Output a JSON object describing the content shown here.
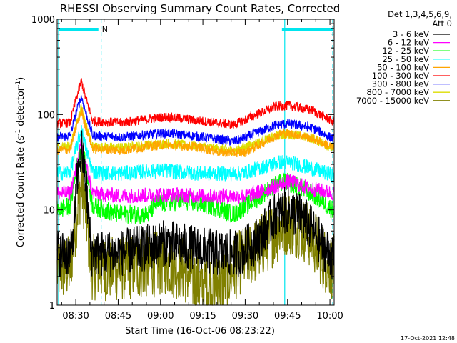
{
  "chart_data": {
    "type": "line",
    "title": "RHESSI Observing Summary Count Rates, Corrected",
    "xlabel": "Start Time (16-Oct-06 08:23:22)",
    "ylabel_parts": [
      "Corrected Count Rate (s",
      "-1",
      " detector",
      "-1",
      ")"
    ],
    "x_ticks": [
      "08:30",
      "08:45",
      "09:00",
      "09:15",
      "09:30",
      "09:45",
      "10:00"
    ],
    "x_tick_minutes": [
      30,
      45,
      60,
      75,
      90,
      105,
      120
    ],
    "xlim_minutes": [
      23.4,
      121.5
    ],
    "y_scale": "log",
    "ylim": [
      1,
      1000
    ],
    "y_ticks": [
      "1",
      "10",
      "100",
      "1000"
    ],
    "legend_header": [
      "Det 1,3,4,5,6,9,",
      "Att 0"
    ],
    "legend_position": "right",
    "flag_label": "N",
    "timestamp": "17-Oct-2021 12:48",
    "series": [
      {
        "name": "3 - 6 keV",
        "color": "#000000",
        "keypoints": [
          [
            23.4,
            3.5
          ],
          [
            28.5,
            3.5
          ],
          [
            30.5,
            20
          ],
          [
            32,
            45
          ],
          [
            33.5,
            20
          ],
          [
            35.5,
            3.5
          ],
          [
            45,
            3.5
          ],
          [
            55,
            4.0
          ],
          [
            62,
            4.5
          ],
          [
            70,
            4.0
          ],
          [
            80,
            3.5
          ],
          [
            88,
            3.5
          ],
          [
            95,
            5
          ],
          [
            101,
            9
          ],
          [
            105,
            10
          ],
          [
            110,
            8.5
          ],
          [
            114,
            6
          ],
          [
            118,
            4
          ],
          [
            121,
            3.2
          ]
        ],
        "noise": 0.25
      },
      {
        "name": "6 - 12 keV",
        "color": "#ff00ff",
        "keypoints": [
          [
            23.4,
            15
          ],
          [
            28,
            15
          ],
          [
            30.5,
            30
          ],
          [
            32,
            50
          ],
          [
            33.5,
            30
          ],
          [
            36,
            15
          ],
          [
            45,
            14
          ],
          [
            62,
            14.5
          ],
          [
            75,
            14
          ],
          [
            90,
            14
          ],
          [
            97,
            16
          ],
          [
            103,
            19
          ],
          [
            106,
            20
          ],
          [
            112,
            17
          ],
          [
            121,
            15
          ]
        ],
        "noise": 0.08
      },
      {
        "name": "12 - 25 keV",
        "color": "#00ff00",
        "keypoints": [
          [
            23.4,
            10
          ],
          [
            28,
            11
          ],
          [
            30.5,
            30
          ],
          [
            32,
            48
          ],
          [
            33.5,
            28
          ],
          [
            36,
            11
          ],
          [
            45,
            9
          ],
          [
            56,
            9
          ],
          [
            58,
            11.5
          ],
          [
            68,
            12.5
          ],
          [
            78,
            11
          ],
          [
            86,
            9
          ],
          [
            94,
            13
          ],
          [
            100,
            18
          ],
          [
            104,
            20
          ],
          [
            110,
            17
          ],
          [
            115,
            14
          ],
          [
            121,
            10
          ]
        ],
        "noise": 0.1
      },
      {
        "name": "25 - 50 keV",
        "color": "#00ffff",
        "keypoints": [
          [
            23.4,
            24
          ],
          [
            28,
            25
          ],
          [
            30.5,
            48
          ],
          [
            32,
            70
          ],
          [
            33.5,
            45
          ],
          [
            36,
            25
          ],
          [
            45,
            24
          ],
          [
            60,
            26
          ],
          [
            75,
            24
          ],
          [
            88,
            24
          ],
          [
            96,
            28
          ],
          [
            103,
            32
          ],
          [
            107,
            31
          ],
          [
            114,
            27
          ],
          [
            121,
            23
          ]
        ],
        "noise": 0.08
      },
      {
        "name": "50 - 100 keV",
        "color": "#ffa500",
        "keypoints": [
          [
            23.4,
            42
          ],
          [
            28,
            43
          ],
          [
            30.5,
            80
          ],
          [
            32,
            110
          ],
          [
            33.5,
            75
          ],
          [
            36,
            44
          ],
          [
            46,
            42
          ],
          [
            60,
            48
          ],
          [
            72,
            46
          ],
          [
            82,
            40
          ],
          [
            90,
            40
          ],
          [
            97,
            52
          ],
          [
            103,
            64
          ],
          [
            108,
            62
          ],
          [
            114,
            56
          ],
          [
            121,
            45
          ]
        ],
        "noise": 0.05
      },
      {
        "name": "100 - 300 keV",
        "color": "#ff0000",
        "keypoints": [
          [
            23.4,
            80
          ],
          [
            28,
            82
          ],
          [
            30.5,
            160
          ],
          [
            32,
            225
          ],
          [
            33.5,
            150
          ],
          [
            36,
            85
          ],
          [
            46,
            82
          ],
          [
            62,
            95
          ],
          [
            75,
            85
          ],
          [
            86,
            78
          ],
          [
            94,
            100
          ],
          [
            101,
            122
          ],
          [
            106,
            124
          ],
          [
            114,
            110
          ],
          [
            121,
            85
          ]
        ],
        "noise": 0.05
      },
      {
        "name": "300 - 800 keV",
        "color": "#0000ff",
        "keypoints": [
          [
            23.4,
            58
          ],
          [
            28,
            60
          ],
          [
            30.5,
            115
          ],
          [
            32,
            155
          ],
          [
            33.5,
            105
          ],
          [
            36,
            60
          ],
          [
            46,
            58
          ],
          [
            62,
            64
          ],
          [
            75,
            58
          ],
          [
            86,
            52
          ],
          [
            94,
            64
          ],
          [
            101,
            78
          ],
          [
            106,
            80
          ],
          [
            114,
            72
          ],
          [
            121,
            56
          ]
        ],
        "noise": 0.05
      },
      {
        "name": "800 - 7000 keV",
        "color": "#dddd00",
        "keypoints": [
          [
            23.4,
            45
          ],
          [
            28,
            46
          ],
          [
            30.5,
            85
          ],
          [
            32,
            120
          ],
          [
            33.5,
            80
          ],
          [
            36,
            46
          ],
          [
            46,
            45
          ],
          [
            62,
            50
          ],
          [
            75,
            46
          ],
          [
            86,
            42
          ],
          [
            94,
            50
          ],
          [
            101,
            60
          ],
          [
            106,
            62
          ],
          [
            114,
            56
          ],
          [
            121,
            44
          ]
        ],
        "noise": 0.05
      },
      {
        "name": "7000 - 15000 keV",
        "color": "#808000",
        "keypoints": [
          [
            23.4,
            2.3
          ],
          [
            28,
            2.5
          ],
          [
            30.5,
            10
          ],
          [
            32,
            19
          ],
          [
            33.5,
            10
          ],
          [
            35.5,
            2.5
          ],
          [
            45,
            2.4
          ],
          [
            55,
            2.6
          ],
          [
            62,
            2.8
          ],
          [
            68,
            2.4
          ],
          [
            74,
            1.6
          ],
          [
            82,
            1.7
          ],
          [
            88,
            2.8
          ],
          [
            95,
            4
          ],
          [
            101,
            6
          ],
          [
            105,
            7.5
          ],
          [
            110,
            6.5
          ],
          [
            114,
            5
          ],
          [
            118,
            3
          ],
          [
            121,
            2.5
          ]
        ],
        "noise": 0.35
      }
    ],
    "markers": {
      "cyan_bars_minutes": [
        [
          24,
          38
        ],
        [
          103,
          121
        ]
      ],
      "solid_vlines_minutes": [
        23.9,
        104
      ],
      "dashed_vlines_minutes": [
        39,
        121
      ]
    }
  }
}
